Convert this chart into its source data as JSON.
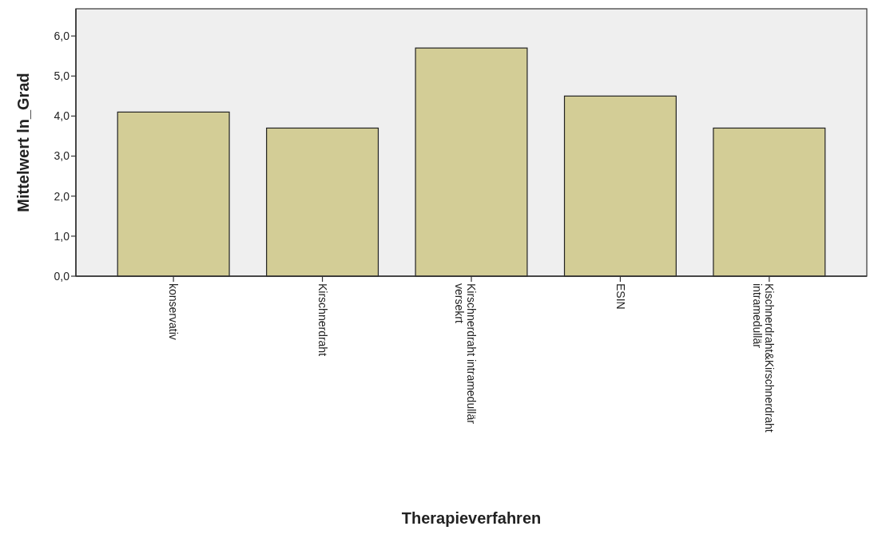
{
  "chart_data": {
    "type": "bar",
    "xlabel": "Therapieverfahren",
    "ylabel": "Mittelwert ln_Grad",
    "categories": [
      "konservativ",
      "Kirschnerdraht",
      "Kirschnerdraht intramedullär versekrt",
      "ESIN",
      "Kischnerdraht&Kirschnerdraht intramedullär"
    ],
    "values": [
      4.1,
      3.7,
      5.7,
      4.5,
      3.7
    ],
    "color": "#d3cd96",
    "ylim": [
      0,
      6.68
    ],
    "yticks": [
      {
        "value": 0,
        "label": "0,0"
      },
      {
        "value": 1,
        "label": "1,0"
      },
      {
        "value": 2,
        "label": "2,0"
      },
      {
        "value": 3,
        "label": "3,0"
      },
      {
        "value": 4,
        "label": "4,0"
      },
      {
        "value": 5,
        "label": "5,0"
      },
      {
        "value": 6,
        "label": "6,0"
      }
    ],
    "grid": false
  }
}
